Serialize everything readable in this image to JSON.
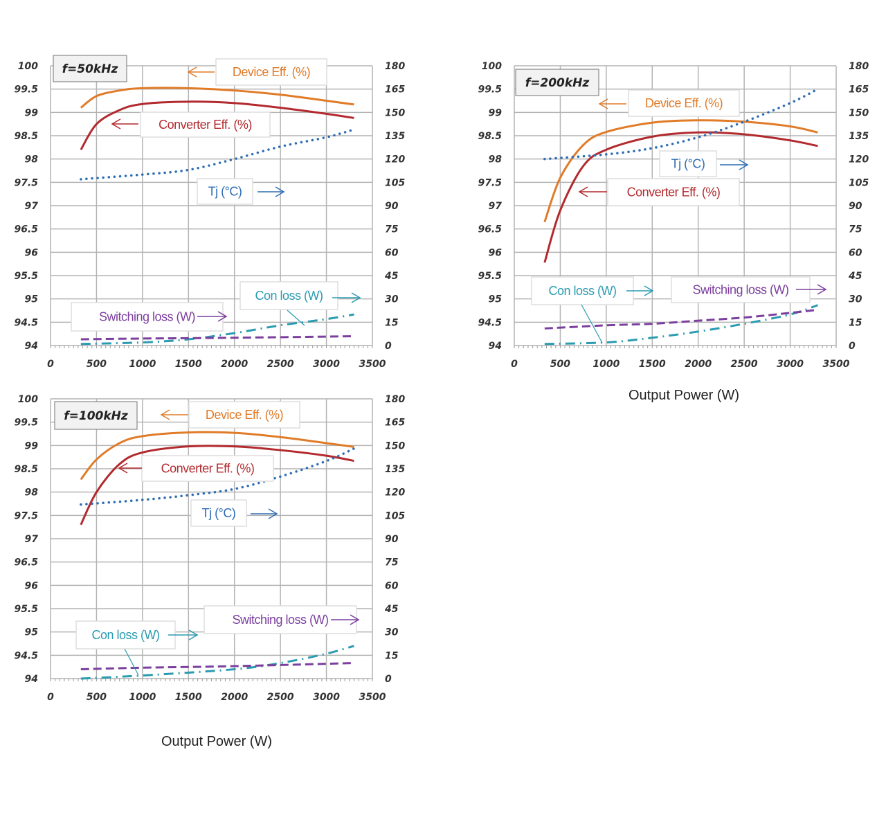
{
  "colors": {
    "device": "#e07b28",
    "converter": "#b22a2e",
    "tj": "#2e6db4",
    "con": "#2a9bb0",
    "sw": "#7b3f9e",
    "grid": "#b4b4b4"
  },
  "chart_data": [
    {
      "type": "line",
      "title": "f=50kHz",
      "xlabel": "",
      "xlim": [
        0,
        3500
      ],
      "xticks": [
        0,
        500,
        1000,
        1500,
        2000,
        2500,
        3000,
        3500
      ],
      "ylim_left": [
        94,
        100
      ],
      "yticks_left": [
        "94",
        "94.5",
        "95",
        "95.5",
        "96",
        "96.5",
        "97",
        "97.5",
        "98",
        "98.5",
        "99",
        "99.5",
        "100"
      ],
      "ylim_right": [
        0,
        180
      ],
      "yticks_right": [
        "0",
        "15",
        "30",
        "45",
        "60",
        "75",
        "90",
        "105",
        "120",
        "135",
        "150",
        "165",
        "180"
      ],
      "grid": true,
      "series": [
        {
          "key": "device",
          "name": "Device Eff. (%)",
          "axis": "left",
          "x": [
            330,
            500,
            750,
            1000,
            1500,
            2000,
            2500,
            3000,
            3300
          ],
          "y": [
            99.1,
            99.35,
            99.47,
            99.52,
            99.52,
            99.47,
            99.38,
            99.25,
            99.17
          ]
        },
        {
          "key": "converter",
          "name": "Converter Eff. (%)",
          "axis": "left",
          "x": [
            330,
            500,
            750,
            1000,
            1500,
            2000,
            2500,
            3000,
            3300
          ],
          "y": [
            98.2,
            98.75,
            99.05,
            99.18,
            99.23,
            99.2,
            99.1,
            98.97,
            98.88
          ]
        },
        {
          "key": "tj",
          "name": "Tj (°C)",
          "axis": "right",
          "x": [
            330,
            1000,
            1500,
            2000,
            2500,
            3000,
            3300
          ],
          "y": [
            107,
            110,
            113,
            120,
            128,
            134,
            139
          ]
        },
        {
          "key": "con",
          "name": "Con loss (W)",
          "axis": "right",
          "x": [
            330,
            1000,
            1500,
            2000,
            2500,
            3000,
            3300
          ],
          "y": [
            1,
            2,
            4,
            8,
            13,
            17,
            20
          ]
        },
        {
          "key": "sw",
          "name": "Switching loss (W)",
          "axis": "right",
          "x": [
            330,
            1000,
            2000,
            3300
          ],
          "y": [
            4,
            4.5,
            5,
            6
          ]
        }
      ]
    },
    {
      "type": "line",
      "title": "f=200kHz",
      "xlabel": "Output Power (W)",
      "xlim": [
        0,
        3500
      ],
      "xticks": [
        0,
        500,
        1000,
        1500,
        2000,
        2500,
        3000,
        3500
      ],
      "ylim_left": [
        94,
        100
      ],
      "yticks_left": [
        "94",
        "94.5",
        "95",
        "95.5",
        "96",
        "96.5",
        "97",
        "97.5",
        "98",
        "98.5",
        "99",
        "99.5",
        "100"
      ],
      "ylim_right": [
        0,
        180
      ],
      "yticks_right": [
        "0",
        "15",
        "30",
        "45",
        "60",
        "75",
        "90",
        "105",
        "120",
        "135",
        "150",
        "165",
        "180"
      ],
      "grid": true,
      "series": [
        {
          "key": "device",
          "name": "Device Eff. (%)",
          "axis": "left",
          "x": [
            330,
            500,
            750,
            1000,
            1500,
            2000,
            2500,
            3000,
            3300
          ],
          "y": [
            96.65,
            97.6,
            98.3,
            98.58,
            98.78,
            98.83,
            98.8,
            98.7,
            98.57
          ]
        },
        {
          "key": "converter",
          "name": "Converter Eff. (%)",
          "axis": "left",
          "x": [
            330,
            500,
            750,
            1000,
            1500,
            2000,
            2500,
            3000,
            3300
          ],
          "y": [
            95.78,
            96.9,
            97.85,
            98.2,
            98.48,
            98.57,
            98.53,
            98.4,
            98.28
          ]
        },
        {
          "key": "tj",
          "name": "Tj (°C)",
          "axis": "right",
          "x": [
            330,
            1000,
            1500,
            2000,
            2500,
            3000,
            3300
          ],
          "y": [
            120,
            123,
            127,
            134,
            144,
            156,
            165
          ]
        },
        {
          "key": "con",
          "name": "Con loss (W)",
          "axis": "right",
          "x": [
            330,
            1000,
            1500,
            2000,
            2500,
            3000,
            3300
          ],
          "y": [
            1,
            2,
            5,
            9,
            14,
            20,
            26
          ]
        },
        {
          "key": "sw",
          "name": "Switching loss (W)",
          "axis": "right",
          "x": [
            330,
            1000,
            1500,
            2000,
            2500,
            3000,
            3300
          ],
          "y": [
            11,
            13,
            14,
            16,
            18,
            21,
            23
          ]
        }
      ]
    },
    {
      "type": "line",
      "title": "f=100kHz",
      "xlabel": "Output Power (W)",
      "xlim": [
        0,
        3500
      ],
      "xticks": [
        0,
        500,
        1000,
        1500,
        2000,
        2500,
        3000,
        3500
      ],
      "ylim_left": [
        94,
        100
      ],
      "yticks_left": [
        "94",
        "94.5",
        "95",
        "95.5",
        "96",
        "96.5",
        "97",
        "97.5",
        "98",
        "98.5",
        "99",
        "99.5",
        "100"
      ],
      "ylim_right": [
        0,
        180
      ],
      "yticks_right": [
        "0",
        "15",
        "30",
        "45",
        "60",
        "75",
        "90",
        "105",
        "120",
        "135",
        "150",
        "165",
        "180"
      ],
      "grid": true,
      "series": [
        {
          "key": "device",
          "name": "Device Eff. (%)",
          "axis": "left",
          "x": [
            330,
            500,
            750,
            1000,
            1500,
            2000,
            2500,
            3000,
            3300
          ],
          "y": [
            98.27,
            98.7,
            99.05,
            99.2,
            99.28,
            99.27,
            99.18,
            99.05,
            98.97
          ]
        },
        {
          "key": "converter",
          "name": "Converter Eff. (%)",
          "axis": "left",
          "x": [
            330,
            500,
            750,
            1000,
            1500,
            2000,
            2500,
            3000,
            3300
          ],
          "y": [
            97.3,
            98.0,
            98.6,
            98.85,
            98.98,
            98.98,
            98.9,
            98.78,
            98.67
          ]
        },
        {
          "key": "tj",
          "name": "Tj (°C)",
          "axis": "right",
          "x": [
            330,
            1000,
            1500,
            2000,
            2500,
            3000,
            3300
          ],
          "y": [
            112,
            115,
            118,
            122,
            130,
            140,
            148
          ]
        },
        {
          "key": "con",
          "name": "Con loss (W)",
          "axis": "right",
          "x": [
            330,
            1000,
            2000,
            2500,
            3000,
            3300
          ],
          "y": [
            0,
            2,
            6,
            10,
            16,
            21
          ]
        },
        {
          "key": "sw",
          "name": "Switching loss (W)",
          "axis": "right",
          "x": [
            330,
            1000,
            2000,
            3300
          ],
          "y": [
            6,
            7,
            8,
            10
          ]
        }
      ]
    }
  ]
}
